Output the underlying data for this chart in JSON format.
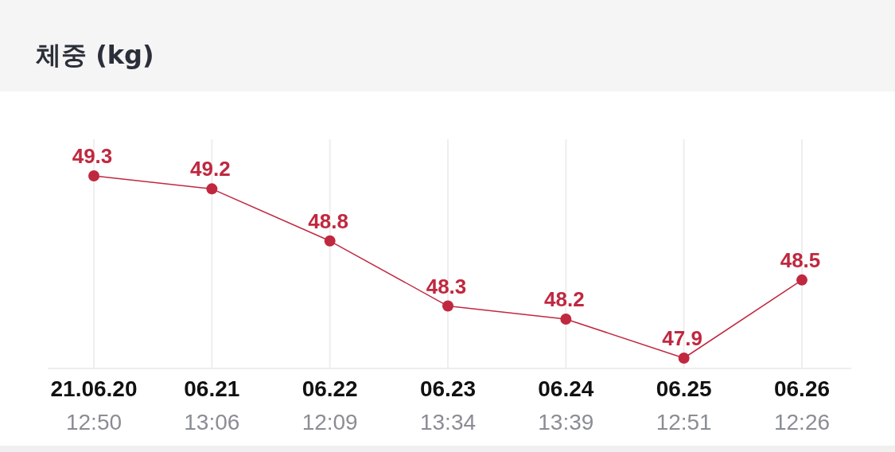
{
  "chart_data": {
    "type": "line",
    "title": "체중 (kg)",
    "categories": [
      "21.06.20 12:50",
      "06.21 13:06",
      "06.22 12:09",
      "06.23 13:34",
      "06.24 13:39",
      "06.25 12:51",
      "06.26 12:26"
    ],
    "series": [
      {
        "color": "#c0283f",
        "values": [
          49.3,
          49.2,
          48.8,
          48.3,
          48.2,
          47.9,
          48.5
        ]
      }
    ],
    "data_labels": true,
    "marker": "circle",
    "grid": "x"
  }
}
